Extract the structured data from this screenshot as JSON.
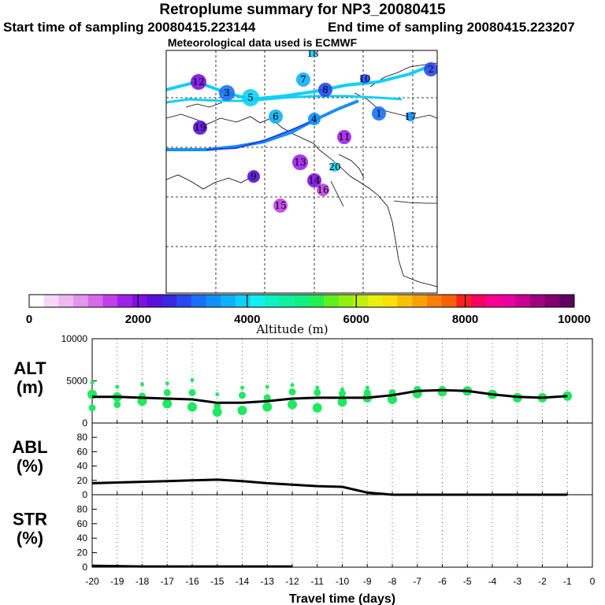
{
  "header": {
    "title": "Retroplume summary for NP3_20080415",
    "start_time": "Start time of sampling 20080415.223144",
    "end_time": "End time of sampling 20080415.223207",
    "met_data": "Meteorological data used is ECMWF"
  },
  "colorbar": {
    "label": "Altitude (m)",
    "tick_labels": [
      "0",
      "2000",
      "4000",
      "6000",
      "8000",
      "10000"
    ],
    "min": 0,
    "max": 10000,
    "colors": [
      "#ffffff",
      "#f7d8f7",
      "#efb8ef",
      "#e594ef",
      "#d56ae8",
      "#c040e6",
      "#a020e8",
      "#8010e0",
      "#5810d8",
      "#3828e0",
      "#2848f0",
      "#1870f8",
      "#1090f8",
      "#10b0f8",
      "#10d0f8",
      "#10f0f0",
      "#10f0c0",
      "#10f0a0",
      "#10f080",
      "#20f050",
      "#60f020",
      "#90f010",
      "#c0f010",
      "#e8f010",
      "#f8e008",
      "#f8c008",
      "#f8a008",
      "#f88008",
      "#f86008",
      "#f82020",
      "#f80060",
      "#f80090",
      "#e800a0",
      "#c80090",
      "#a00080",
      "#800070",
      "#600060"
    ]
  },
  "chart_data": [
    {
      "type": "map",
      "title": "Retroplume summary for NP3_20080415",
      "colorbar_label": "Altitude (m)",
      "plumes": [
        {
          "day": 1,
          "label": "1",
          "altitude_m": 3200
        },
        {
          "day": 2,
          "label": "2",
          "altitude_m": 2900
        },
        {
          "day": 3,
          "label": "3",
          "altitude_m": 3100
        },
        {
          "day": 4,
          "label": "4",
          "altitude_m": 3500
        },
        {
          "day": 5,
          "label": "5",
          "altitude_m": 3900
        },
        {
          "day": 6,
          "label": "6",
          "altitude_m": 3700
        },
        {
          "day": 7,
          "label": "7",
          "altitude_m": 3600
        },
        {
          "day": 8,
          "label": "8",
          "altitude_m": 2900
        },
        {
          "day": 9,
          "label": "9",
          "altitude_m": 2400
        },
        {
          "day": 10,
          "label": "10",
          "altitude_m": 2800
        },
        {
          "day": 11,
          "label": "11",
          "altitude_m": 1800
        },
        {
          "day": 12,
          "label": "12",
          "altitude_m": 2100
        },
        {
          "day": 13,
          "label": "13",
          "altitude_m": 1700
        },
        {
          "day": 14,
          "label": "14",
          "altitude_m": 1900
        },
        {
          "day": 15,
          "label": "15",
          "altitude_m": 1400
        },
        {
          "day": 16,
          "label": "16",
          "altitude_m": 1500
        },
        {
          "day": 17,
          "label": "17",
          "altitude_m": 3400
        },
        {
          "day": 18,
          "label": "18",
          "altitude_m": 3800
        },
        {
          "day": 19,
          "label": "19",
          "altitude_m": 2300
        },
        {
          "day": 20,
          "label": "20",
          "altitude_m": 3900
        }
      ]
    },
    {
      "type": "scatter",
      "ylabel": "ALT (m)",
      "ylabel_line1": "ALT",
      "ylabel_line2": "(m)",
      "xlim": [
        -20,
        0
      ],
      "ylim": [
        0,
        10000
      ],
      "ytick_labels": [
        "10000",
        "5000",
        "0"
      ],
      "median_line": {
        "x": [
          -20,
          -19,
          -18,
          -17,
          -16,
          -15,
          -14,
          -13,
          -12,
          -11,
          -10,
          -9,
          -8,
          -7,
          -6,
          -5,
          -4,
          -3,
          -2,
          -1
        ],
        "y": [
          3100,
          3100,
          3000,
          2900,
          2800,
          2400,
          2400,
          2600,
          2900,
          3000,
          3000,
          3000,
          3300,
          3800,
          3900,
          3800,
          3400,
          3100,
          3000,
          3200
        ]
      },
      "points": [
        {
          "x": -20,
          "y": [
            3400,
            1800,
            4800
          ]
        },
        {
          "x": -19,
          "y": [
            3100,
            2200,
            4300
          ]
        },
        {
          "x": -18,
          "y": [
            2600,
            3200,
            4600
          ]
        },
        {
          "x": -17,
          "y": [
            2300,
            3600,
            4700
          ]
        },
        {
          "x": -16,
          "y": [
            1900,
            3600,
            5100
          ]
        },
        {
          "x": -15,
          "y": [
            1300,
            2000,
            3400
          ]
        },
        {
          "x": -14,
          "y": [
            1500,
            3300,
            4200
          ]
        },
        {
          "x": -13,
          "y": [
            1900,
            3000,
            4300
          ]
        },
        {
          "x": -12,
          "y": [
            2200,
            3700,
            4500
          ]
        },
        {
          "x": -11,
          "y": [
            1800,
            3600,
            4200
          ]
        },
        {
          "x": -10,
          "y": [
            2500,
            3500,
            4000
          ]
        },
        {
          "x": -9,
          "y": [
            3000,
            3600,
            4200
          ]
        },
        {
          "x": -8,
          "y": [
            2800,
            3600
          ]
        },
        {
          "x": -7,
          "y": [
            3500,
            4000
          ]
        },
        {
          "x": -6,
          "y": [
            3700,
            4000
          ]
        },
        {
          "x": -5,
          "y": [
            3800
          ]
        },
        {
          "x": -4,
          "y": [
            3400
          ]
        },
        {
          "x": -3,
          "y": [
            3000
          ]
        },
        {
          "x": -2,
          "y": [
            3000
          ]
        },
        {
          "x": -1,
          "y": [
            3200
          ]
        }
      ]
    },
    {
      "type": "line",
      "ylabel": "ABL (%)",
      "ylabel_line1": "ABL",
      "ylabel_line2": "(%)",
      "xlim": [
        -20,
        0
      ],
      "ylim": [
        0,
        100
      ],
      "ytick_labels": [
        "80",
        "60",
        "40",
        "20",
        "0"
      ],
      "x": [
        -20,
        -19,
        -18,
        -17,
        -16,
        -15,
        -14,
        -13,
        -12,
        -11,
        -10,
        -9,
        -8,
        -7,
        -6,
        -5,
        -4,
        -3,
        -2,
        -1
      ],
      "y": [
        16,
        17,
        18,
        19,
        20,
        21,
        19,
        16,
        14,
        12,
        11,
        3,
        0,
        0,
        0,
        0,
        0,
        0,
        0,
        0
      ]
    },
    {
      "type": "line",
      "ylabel": "STR (%)",
      "ylabel_line1": "STR",
      "ylabel_line2": "(%)",
      "xlabel": "Travel time (days)",
      "xlim": [
        -20,
        0
      ],
      "ylim": [
        0,
        100
      ],
      "ytick_labels": [
        "80",
        "60",
        "40",
        "20",
        "0"
      ],
      "xtick_labels": [
        "-20",
        "-19",
        "-18",
        "-17",
        "-16",
        "-15",
        "-14",
        "-13",
        "-12",
        "-11",
        "-10",
        "-9",
        "-8",
        "-7",
        "-6",
        "-5",
        "-4",
        "-3",
        "-2",
        "-1",
        "0"
      ],
      "x": [
        -20,
        -19,
        -18,
        -17,
        -16,
        -15,
        -14,
        -13,
        -12
      ],
      "y": [
        2,
        1.5,
        1,
        1,
        1,
        1,
        1,
        1,
        1
      ]
    }
  ]
}
